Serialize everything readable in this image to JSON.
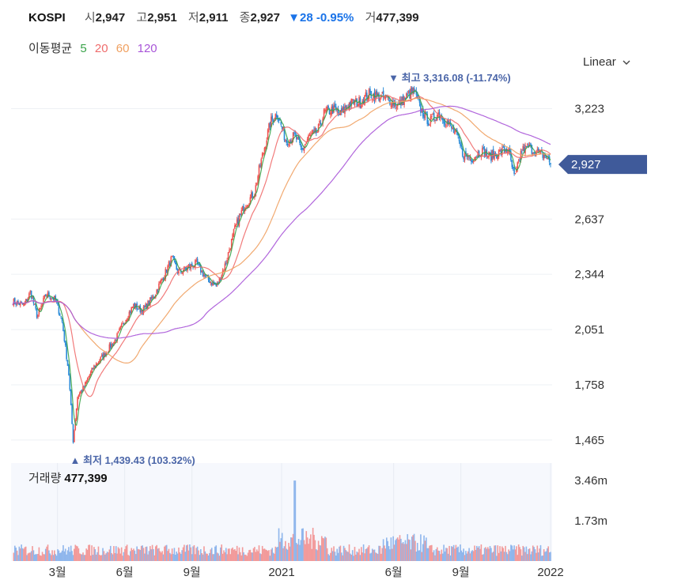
{
  "header": {
    "ticker": "KOSPI",
    "open_label": "시",
    "open": "2,947",
    "high_label": "고",
    "high": "2,951",
    "low_label": "저",
    "low": "2,911",
    "close_label": "종",
    "close": "2,927",
    "change": "▼28 -0.95%",
    "volume_label": "거",
    "volume": "477,399"
  },
  "moving_averages": {
    "label": "이동평균",
    "periods": [
      {
        "period": "5",
        "color": "#3aa34a"
      },
      {
        "period": "20",
        "color": "#ef6c6c"
      },
      {
        "period": "60",
        "color": "#f0a060"
      },
      {
        "period": "120",
        "color": "#a855d8"
      }
    ]
  },
  "scale_mode": "Linear",
  "volume_panel": {
    "title": "거래량",
    "value": "477,399",
    "ticks": [
      "3.46m",
      "1.73m"
    ],
    "tick_values": [
      3.46,
      1.73
    ],
    "max": 4.2
  },
  "chart_data": {
    "type": "candlestick",
    "title": "KOSPI",
    "y_ticks": [
      3223,
      2637,
      2344,
      2051,
      1758,
      1465
    ],
    "y_tick_labels": [
      "3,223",
      "2,637",
      "2,344",
      "2,051",
      "1,758",
      "1,465"
    ],
    "ylim": [
      1410,
      3380
    ],
    "x_range": [
      "2020-01",
      "2022-01"
    ],
    "x_ticks": [
      {
        "label": "3월",
        "month": 2
      },
      {
        "label": "6월",
        "month": 5
      },
      {
        "label": "9월",
        "month": 8
      },
      {
        "label": "2021",
        "month": 12
      },
      {
        "label": "6월",
        "month": 17
      },
      {
        "label": "9월",
        "month": 20
      },
      {
        "label": "2022",
        "month": 24
      }
    ],
    "last_price": 2927,
    "last_price_label": "2,927",
    "annotations": {
      "high": {
        "text": "▼ 최고 3,316.08 (-11.74%)",
        "value": 3316.08,
        "month": 17.9
      },
      "low": {
        "text": "▲ 최저 1,439.43 (103.32%)",
        "value": 1439.43,
        "month": 2.7
      }
    },
    "series": [
      {
        "name": "KOSPI",
        "color_up": "#ef5350",
        "color_down": "#2a8bd8",
        "key_points": [
          [
            0,
            2200
          ],
          [
            0.5,
            2180
          ],
          [
            0.8,
            2250
          ],
          [
            1.1,
            2120
          ],
          [
            1.5,
            2240
          ],
          [
            1.9,
            2210
          ],
          [
            2.2,
            2100
          ],
          [
            2.5,
            1820
          ],
          [
            2.7,
            1460
          ],
          [
            2.9,
            1700
          ],
          [
            3.2,
            1750
          ],
          [
            3.6,
            1850
          ],
          [
            4.1,
            1920
          ],
          [
            4.6,
            2000
          ],
          [
            5.0,
            2100
          ],
          [
            5.4,
            2180
          ],
          [
            5.8,
            2150
          ],
          [
            6.3,
            2230
          ],
          [
            6.8,
            2350
          ],
          [
            7.1,
            2430
          ],
          [
            7.4,
            2350
          ],
          [
            7.8,
            2380
          ],
          [
            8.2,
            2400
          ],
          [
            8.6,
            2330
          ],
          [
            8.9,
            2300
          ],
          [
            9.1,
            2280
          ],
          [
            9.5,
            2400
          ],
          [
            9.9,
            2580
          ],
          [
            10.3,
            2700
          ],
          [
            10.8,
            2780
          ],
          [
            11.0,
            2900
          ],
          [
            11.2,
            3000
          ],
          [
            11.5,
            3150
          ],
          [
            11.8,
            3200
          ],
          [
            12.2,
            3050
          ],
          [
            12.6,
            3080
          ],
          [
            12.9,
            3000
          ],
          [
            13.2,
            3070
          ],
          [
            13.6,
            3100
          ],
          [
            13.9,
            3200
          ],
          [
            14.3,
            3220
          ],
          [
            14.6,
            3190
          ],
          [
            15.0,
            3250
          ],
          [
            15.5,
            3260
          ],
          [
            15.9,
            3300
          ],
          [
            16.3,
            3290
          ],
          [
            16.8,
            3270
          ],
          [
            17.2,
            3240
          ],
          [
            17.6,
            3290
          ],
          [
            17.9,
            3316
          ],
          [
            18.2,
            3220
          ],
          [
            18.6,
            3150
          ],
          [
            19.0,
            3200
          ],
          [
            19.4,
            3150
          ],
          [
            19.8,
            3080
          ],
          [
            20.1,
            2980
          ],
          [
            20.5,
            2960
          ],
          [
            20.9,
            3000
          ],
          [
            21.3,
            2970
          ],
          [
            21.7,
            2990
          ],
          [
            22.1,
            3010
          ],
          [
            22.4,
            2850
          ],
          [
            22.7,
            3000
          ],
          [
            23.0,
            3020
          ],
          [
            23.4,
            2990
          ],
          [
            23.8,
            2970
          ],
          [
            24.0,
            2927
          ]
        ]
      },
      {
        "name": "MA5",
        "color": "#3aa34a"
      },
      {
        "name": "MA20",
        "color": "#ef6c6c"
      },
      {
        "name": "MA60",
        "color": "#f0a060"
      },
      {
        "name": "MA120",
        "color": "#a855d8"
      }
    ]
  }
}
